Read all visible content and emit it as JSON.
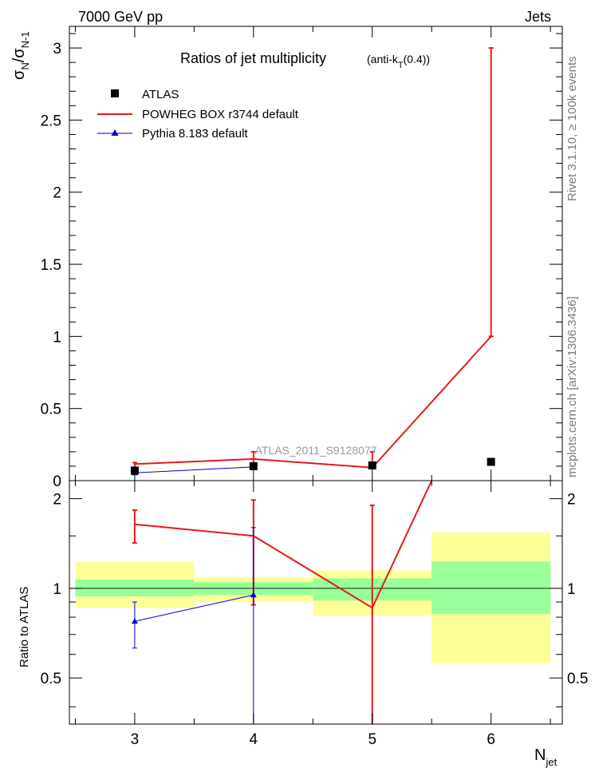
{
  "header": {
    "left": "7000 GeV pp",
    "right": "Jets"
  },
  "side_labels": {
    "rivet": "Rivet 3.1.10, ≥ 100k events",
    "mcplots": "mcplots.cern.ch [arXiv:1306.3436]"
  },
  "colors": {
    "data": "#000000",
    "powheg": "#e41a1c",
    "pythia": "#0000cc",
    "band_outer": "#ffff99",
    "band_inner": "#99ff99"
  },
  "chart_data": [
    {
      "type": "line",
      "title_main": "Ratios of jet multiplicity",
      "title_sub": "(anti-k",
      "title_sub_idx": "T",
      "title_sub_tail": "(0.4))",
      "ylabel_main": "σ",
      "ylabel_sub1": "N",
      "ylabel_sep": "/σ",
      "ylabel_sub2": "N-1",
      "ylim": [
        0,
        3.15
      ],
      "xlim": [
        2.45,
        6.6
      ],
      "yticks": [
        0,
        0.5,
        1,
        1.5,
        2,
        2.5,
        3
      ],
      "yticklabels": [
        "0",
        "0.5",
        "1",
        "1.5",
        "2",
        "2.5",
        "3"
      ],
      "watermark": "ATLAS_2011_S9128077",
      "series": [
        {
          "name": "ATLAS",
          "x": [
            3,
            4,
            5,
            6
          ],
          "y": [
            0.07,
            0.1,
            0.105,
            0.13
          ]
        },
        {
          "name": "POWHEG BOX r3744 default",
          "x": [
            3,
            4,
            5,
            6
          ],
          "y": [
            0.115,
            0.15,
            0.09,
            1.0
          ],
          "err_lo": [
            0.07,
            0.1,
            0.1,
            1.0
          ],
          "err_hi": [
            0.125,
            0.2,
            0.2,
            3.0
          ]
        },
        {
          "name": "Pythia 8.183 default",
          "x": [
            3,
            4
          ],
          "y": [
            0.054,
            0.095
          ]
        }
      ],
      "legend": [
        "ATLAS",
        "POWHEG BOX r3744 default",
        "Pythia 8.183 default"
      ]
    },
    {
      "type": "line",
      "ylabel": "Ratio to ATLAS",
      "xlabel_main": "N",
      "xlabel_sub": "jet",
      "ylim": [
        0.35,
        2.3
      ],
      "xticks": [
        3,
        4,
        5,
        6
      ],
      "xticklabels": [
        "3",
        "4",
        "5",
        "6"
      ],
      "yticks": [
        0.5,
        1,
        2
      ],
      "yticklabels": [
        "0.5",
        "1",
        "2"
      ],
      "bands": [
        {
          "xmin": 2.5,
          "xmax": 3.5,
          "outer": [
            0.86,
            1.23
          ],
          "inner": [
            0.94,
            1.07
          ]
        },
        {
          "xmin": 3.5,
          "xmax": 4.5,
          "outer": [
            0.9,
            1.09
          ],
          "inner": [
            0.95,
            1.05
          ]
        },
        {
          "xmin": 4.5,
          "xmax": 5.5,
          "outer": [
            0.81,
            1.15
          ],
          "inner": [
            0.91,
            1.08
          ]
        },
        {
          "xmin": 5.5,
          "xmax": 6.5,
          "outer": [
            0.56,
            1.54
          ],
          "inner": [
            0.82,
            1.23
          ]
        }
      ],
      "powheg": {
        "x": [
          3,
          4,
          5,
          5.5
        ],
        "y": [
          1.64,
          1.5,
          0.86,
          2.35
        ],
        "err_lo": [
          1.42,
          0.88,
          0.35,
          null
        ],
        "err_hi": [
          1.83,
          1.98,
          1.9,
          null
        ]
      },
      "pythia": {
        "x": [
          3,
          4
        ],
        "y": [
          0.775,
          0.95
        ],
        "err_lo": [
          0.63,
          0.35
        ],
        "err_hi": [
          0.9,
          1.6
        ]
      }
    }
  ]
}
